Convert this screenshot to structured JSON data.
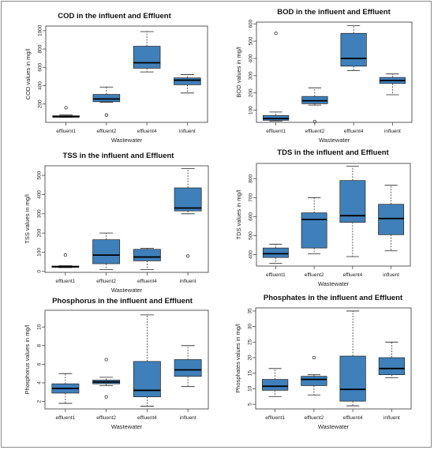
{
  "chart_data": [
    {
      "type": "box",
      "title": "COD in the influent and Effluent",
      "xlabel": "Wastewater",
      "ylabel": "COD values in mg/l",
      "categories": [
        "effluent1",
        "effluent2",
        "effluent4",
        "influent"
      ],
      "ylim": [
        0,
        1050
      ],
      "yticks": [
        200,
        400,
        600,
        800,
        1000
      ],
      "color": "#3f7fba",
      "boxes": [
        {
          "whislo": 55,
          "q1": 57,
          "med": 62,
          "q3": 72,
          "whishi": 80,
          "fliers": [
            160
          ]
        },
        {
          "whislo": 220,
          "q1": 225,
          "med": 255,
          "q3": 305,
          "whishi": 385,
          "fliers": [
            80
          ]
        },
        {
          "whislo": 550,
          "q1": 590,
          "med": 650,
          "q3": 830,
          "whishi": 990,
          "fliers": []
        },
        {
          "whislo": 320,
          "q1": 410,
          "med": 460,
          "q3": 485,
          "whishi": 520,
          "fliers": []
        }
      ]
    },
    {
      "type": "box",
      "title": "BOD in the influent and Effluent",
      "xlabel": "Wastewater",
      "ylabel": "BOD values in mg/l",
      "categories": [
        "effluent1",
        "effluent2",
        "effluent4",
        "influent"
      ],
      "ylim": [
        30,
        610
      ],
      "yticks": [
        100,
        200,
        300,
        400,
        500,
        600
      ],
      "color": "#3f7fba",
      "boxes": [
        {
          "whislo": 38,
          "q1": 42,
          "med": 52,
          "q3": 70,
          "whishi": 90,
          "fliers": [
            545
          ]
        },
        {
          "whislo": 130,
          "q1": 138,
          "med": 155,
          "q3": 180,
          "whishi": 230,
          "fliers": [
            35
          ]
        },
        {
          "whislo": 330,
          "q1": 355,
          "med": 400,
          "q3": 545,
          "whishi": 590,
          "fliers": []
        },
        {
          "whislo": 190,
          "q1": 255,
          "med": 272,
          "q3": 290,
          "whishi": 310,
          "fliers": []
        }
      ]
    },
    {
      "type": "box",
      "title": "TSS in the influent and Effluent",
      "xlabel": "Wastewater",
      "ylabel": "TSS values in mg/l",
      "categories": [
        "effluent1",
        "effluent2",
        "effluent4",
        "influent"
      ],
      "ylim": [
        -5,
        550
      ],
      "yticks": [
        0,
        100,
        200,
        300,
        400,
        500
      ],
      "color": "#3f7fba",
      "boxes": [
        {
          "whislo": 20,
          "q1": 22,
          "med": 24,
          "q3": 28,
          "whishi": 30,
          "fliers": [
            85
          ]
        },
        {
          "whislo": 10,
          "q1": 40,
          "med": 85,
          "q3": 165,
          "whishi": 200,
          "fliers": []
        },
        {
          "whislo": 10,
          "q1": 55,
          "med": 75,
          "q3": 115,
          "whishi": 120,
          "fliers": []
        },
        {
          "whislo": 300,
          "q1": 315,
          "med": 330,
          "q3": 435,
          "whishi": 535,
          "fliers": [
            80
          ]
        }
      ]
    },
    {
      "type": "box",
      "title": "TDS in the influent and Effluent",
      "xlabel": "Wastewater",
      "ylabel": "TDS values in mg/l",
      "categories": [
        "effluent1",
        "effluent2",
        "effluent4",
        "influent"
      ],
      "ylim": [
        340,
        880
      ],
      "yticks": [
        400,
        500,
        600,
        700,
        800
      ],
      "color": "#3f7fba",
      "boxes": [
        {
          "whislo": 355,
          "q1": 385,
          "med": 405,
          "q3": 435,
          "whishi": 455,
          "fliers": []
        },
        {
          "whislo": 405,
          "q1": 435,
          "med": 585,
          "q3": 620,
          "whishi": 700,
          "fliers": []
        },
        {
          "whislo": 390,
          "q1": 570,
          "med": 605,
          "q3": 790,
          "whishi": 865,
          "fliers": []
        },
        {
          "whislo": 420,
          "q1": 505,
          "med": 590,
          "q3": 665,
          "whishi": 765,
          "fliers": []
        }
      ]
    },
    {
      "type": "box",
      "title": "Phosphorus in the influent and Effluent",
      "xlabel": "Wastewater",
      "ylabel": "Phosphorus values in mg/l",
      "categories": [
        "effluent1",
        "effluent2",
        "effluent4",
        "influent"
      ],
      "ylim": [
        1.2,
        11.8
      ],
      "yticks": [
        2,
        4,
        6,
        8,
        10
      ],
      "color": "#3f7fba",
      "boxes": [
        {
          "whislo": 1.8,
          "q1": 2.9,
          "med": 3.4,
          "q3": 3.9,
          "whishi": 5.0,
          "fliers": []
        },
        {
          "whislo": 3.7,
          "q1": 3.9,
          "med": 4.1,
          "q3": 4.3,
          "whishi": 4.6,
          "fliers": [
            6.5,
            2.5
          ]
        },
        {
          "whislo": 1.5,
          "q1": 2.5,
          "med": 3.2,
          "q3": 6.3,
          "whishi": 11.3,
          "fliers": []
        },
        {
          "whislo": 3.6,
          "q1": 4.7,
          "med": 5.4,
          "q3": 6.5,
          "whishi": 8.0,
          "fliers": []
        }
      ]
    },
    {
      "type": "box",
      "title": "Phosphates in the influent and Effluent",
      "xlabel": "Wastewater",
      "ylabel": "Phosphates values in mg/l",
      "categories": [
        "effluent1",
        "effluent2",
        "effluent4",
        "influent"
      ],
      "ylim": [
        3.5,
        36
      ],
      "yticks": [
        5,
        10,
        15,
        20,
        25,
        30,
        35
      ],
      "color": "#3f7fba",
      "boxes": [
        {
          "whislo": 7.5,
          "q1": 9.5,
          "med": 10.8,
          "q3": 13.0,
          "whishi": 16.5,
          "fliers": []
        },
        {
          "whislo": 8.0,
          "q1": 11.0,
          "med": 13.0,
          "q3": 14.0,
          "whishi": 14.5,
          "fliers": [
            20.0
          ]
        },
        {
          "whislo": 4.5,
          "q1": 6.0,
          "med": 9.8,
          "q3": 20.5,
          "whishi": 35.0,
          "fliers": []
        },
        {
          "whislo": 13.5,
          "q1": 14.5,
          "med": 16.5,
          "q3": 20.0,
          "whishi": 25.0,
          "fliers": []
        }
      ]
    }
  ]
}
